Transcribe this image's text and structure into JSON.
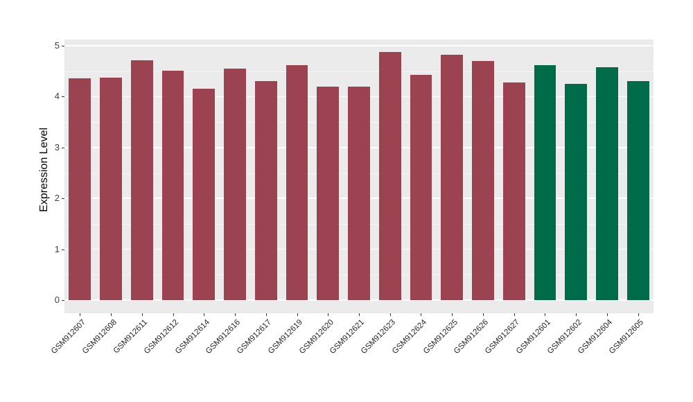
{
  "chart_data": {
    "type": "bar",
    "title": "",
    "ylabel": "Expression Level",
    "xlabel": "",
    "ylim": [
      0,
      5
    ],
    "yticks": [
      0,
      1,
      2,
      3,
      4,
      5
    ],
    "legend_position": "none",
    "grid": "white major gridlines at integers and minor gridlines at halves on grey panel",
    "panel_bg": "#EBEBEB",
    "categories": [
      "GSM912607",
      "GSM912608",
      "GSM912611",
      "GSM912612",
      "GSM912614",
      "GSM912616",
      "GSM912617",
      "GSM912619",
      "GSM912620",
      "GSM912621",
      "GSM912623",
      "GSM912624",
      "GSM912625",
      "GSM912626",
      "GSM912627",
      "GSM912601",
      "GSM912602",
      "GSM912604",
      "GSM912605"
    ],
    "values": [
      4.36,
      4.38,
      4.72,
      4.51,
      4.16,
      4.55,
      4.31,
      4.62,
      4.2,
      4.2,
      4.88,
      4.43,
      4.82,
      4.7,
      4.28,
      4.62,
      4.25,
      4.58,
      4.31
    ],
    "bar_colors": [
      "#9C4352",
      "#9C4352",
      "#9C4352",
      "#9C4352",
      "#9C4352",
      "#9C4352",
      "#9C4352",
      "#9C4352",
      "#9C4352",
      "#9C4352",
      "#9C4352",
      "#9C4352",
      "#9C4352",
      "#9C4352",
      "#9C4352",
      "#006B49",
      "#006B49",
      "#006B49",
      "#006B49"
    ],
    "group_colors": {
      "first_group": "#9C4352",
      "second_group": "#006B49"
    }
  }
}
